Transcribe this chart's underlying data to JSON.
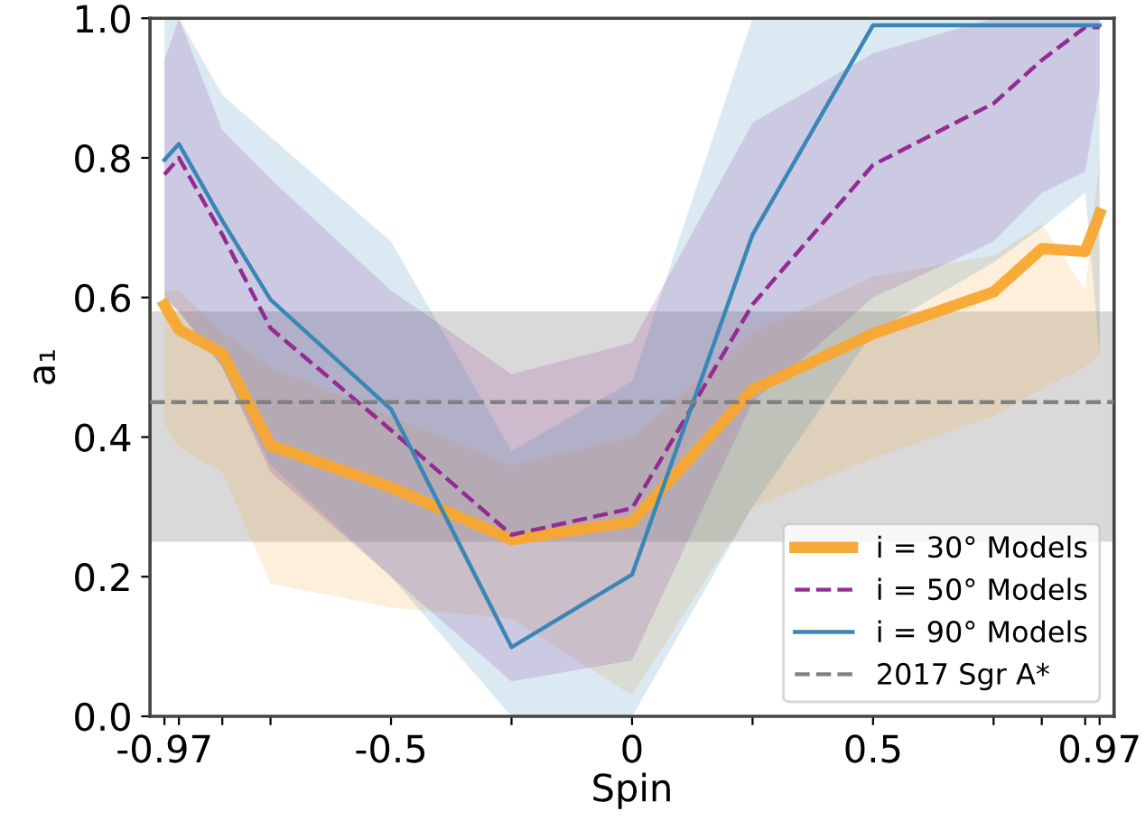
{
  "chart_data": {
    "type": "line",
    "xlabel": "Spin",
    "ylabel": "a₁",
    "x": [
      -0.97,
      -0.94,
      -0.85,
      -0.75,
      -0.5,
      -0.25,
      0,
      0.25,
      0.5,
      0.75,
      0.85,
      0.94,
      0.97
    ],
    "series": [
      {
        "name": "i = 30° Models",
        "color": "#f8a630",
        "line_style": "solid",
        "values": [
          0.589,
          0.554,
          0.52,
          0.388,
          0.328,
          0.253,
          0.279,
          0.468,
          0.548,
          0.608,
          0.67,
          0.666,
          0.72
        ],
        "lower": [
          0.42,
          0.385,
          0.35,
          0.19,
          0.156,
          0.14,
          0.03,
          0.3,
          0.37,
          0.43,
          0.47,
          0.5,
          0.52
        ],
        "upper": [
          0.61,
          0.61,
          0.55,
          0.5,
          0.43,
          0.36,
          0.4,
          0.55,
          0.63,
          0.66,
          0.705,
          0.61,
          0.8
        ]
      },
      {
        "name": "i = 50° Models",
        "color": "#932b93",
        "line_style": "dashed",
        "values": [
          0.776,
          0.8,
          0.69,
          0.556,
          0.41,
          0.26,
          0.298,
          0.59,
          0.79,
          0.878,
          0.94,
          0.987,
          0.987
        ],
        "lower": [
          0.6,
          0.58,
          0.5,
          0.35,
          0.2,
          0.05,
          0.08,
          0.45,
          0.6,
          0.68,
          0.75,
          0.78,
          0.9
        ],
        "upper": [
          0.94,
          1.0,
          0.84,
          0.77,
          0.61,
          0.49,
          0.535,
          0.85,
          0.95,
          1.0,
          1.0,
          1.0,
          1.0
        ]
      },
      {
        "name": "i = 90° Models",
        "color": "#3a86b6",
        "line_style": "solid",
        "values": [
          0.797,
          0.82,
          0.71,
          0.597,
          0.44,
          0.099,
          0.203,
          0.69,
          0.99,
          0.99,
          0.99,
          0.99,
          0.99
        ],
        "lower": [
          0.6,
          0.58,
          0.5,
          0.36,
          0.2,
          0.0,
          0.0,
          0.3,
          0.55,
          0.65,
          0.7,
          0.75,
          0.52
        ],
        "upper": [
          1.0,
          1.0,
          0.89,
          0.83,
          0.68,
          0.38,
          0.48,
          1.0,
          1.0,
          1.0,
          1.0,
          1.0,
          1.0
        ]
      }
    ],
    "ref_lines": [
      {
        "axis": "y",
        "value": 0.45,
        "label": "2017 Sgr A*",
        "color": "#808080",
        "line_style": "dashed"
      }
    ],
    "bands": [
      {
        "axis": "y",
        "from": 0.25,
        "to": 0.58,
        "color": "#d9d9d9"
      }
    ],
    "xlim": [
      -1.0,
      1.0
    ],
    "xticks": [
      -0.97,
      {
        "value": -0.94,
        "label": null
      },
      {
        "value": -0.85,
        "label": null
      },
      {
        "value": -0.75,
        "label": null
      },
      -0.5,
      {
        "value": -0.25,
        "label": null
      },
      0,
      {
        "value": 0.25,
        "label": null
      },
      0.5,
      {
        "value": 0.75,
        "label": null
      },
      {
        "value": 0.85,
        "label": null
      },
      {
        "value": 0.94,
        "label": null
      },
      0.97
    ],
    "ylim": [
      0,
      1.0
    ],
    "yticks": [
      {
        "value": 0,
        "label": "0.0"
      },
      0.2,
      0.4,
      0.6,
      0.8,
      {
        "value": 1.0,
        "label": "1.0"
      }
    ],
    "grid": false,
    "legend": "bottom right"
  }
}
